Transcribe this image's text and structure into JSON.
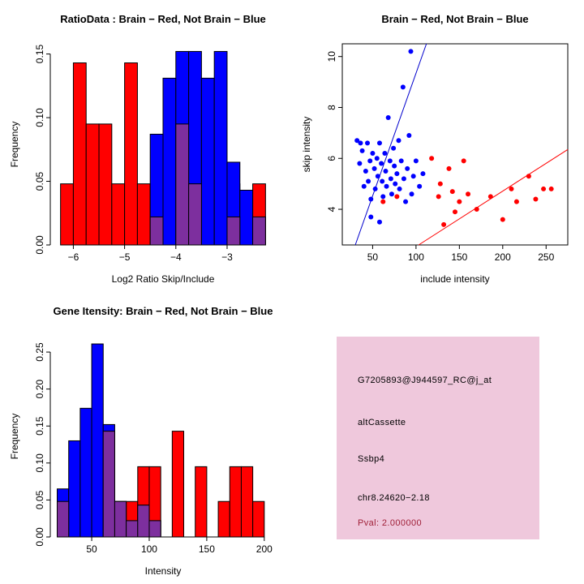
{
  "figure": {
    "background": "#FFFFFF",
    "colors": {
      "brain": "#FF0000",
      "not_brain": "#0000FF",
      "overlap": "#7D2F9E",
      "axis": "#000000"
    }
  },
  "chart_data": [
    {
      "id": "ratio_hist",
      "type": "bar",
      "subtype": "overlaid-histogram",
      "title": "RatioData : Brain − Red, Not Brain − Blue",
      "xlabel": "Log2 Ratio Skip/Include",
      "ylabel": "Frequency",
      "xlim": [
        -6.45,
        -2.05
      ],
      "ylim": [
        0,
        0.158
      ],
      "xticks": [
        -6,
        -5,
        -4,
        -3
      ],
      "xtick_labels": [
        "−6",
        "−5",
        "−4",
        "−3"
      ],
      "yticks": [
        0,
        0.05,
        0.1,
        0.15
      ],
      "ytick_labels": [
        "0.00",
        "0.05",
        "0.10",
        "0.15"
      ],
      "bin_start": -6.25,
      "bin_width": 0.25,
      "legend": [
        {
          "label": "Brain",
          "color": "#FF0000"
        },
        {
          "label": "Not Brain",
          "color": "#0000FF"
        }
      ],
      "series": [
        {
          "name": "brain-red",
          "color": "#FF0000",
          "values": [
            0.048,
            0.143,
            0.095,
            0.095,
            0.048,
            0.143,
            0.048,
            0.048,
            0.048,
            0.095,
            0.048,
            0,
            0,
            0.048,
            0,
            0.048
          ]
        },
        {
          "name": "not-brain-blue",
          "color": "#0000FF",
          "values": [
            0,
            0,
            0,
            0,
            0,
            0,
            0,
            0.087,
            0.131,
            0.152,
            0.152,
            0.131,
            0.152,
            0.065,
            0.043,
            0.022
          ]
        },
        {
          "name": "overlap-purple",
          "color": "#7D2F9E",
          "values": [
            0,
            0,
            0,
            0,
            0,
            0,
            0,
            0.022,
            0,
            0.095,
            0.048,
            0,
            0,
            0.022,
            0,
            0.022
          ]
        }
      ]
    },
    {
      "id": "intensity_scatter",
      "type": "scatter",
      "title": "Brain − Red, Not Brain − Blue",
      "xlabel": "include intensity",
      "ylabel": "skip intensity",
      "xlim": [
        15,
        275
      ],
      "ylim": [
        2.6,
        10.5
      ],
      "xticks": [
        50,
        100,
        150,
        200,
        250
      ],
      "xtick_labels": [
        "50",
        "100",
        "150",
        "200",
        "250"
      ],
      "yticks": [
        4,
        6,
        8,
        10
      ],
      "ytick_labels": [
        "4",
        "6",
        "8",
        "10"
      ],
      "series": [
        {
          "name": "not-brain-blue",
          "color": "#0000FF",
          "points": [
            [
              32,
              6.7
            ],
            [
              35,
              5.8
            ],
            [
              36,
              6.6
            ],
            [
              38,
              6.3
            ],
            [
              40,
              4.9
            ],
            [
              42,
              5.5
            ],
            [
              44,
              6.6
            ],
            [
              45,
              5.1
            ],
            [
              47,
              5.9
            ],
            [
              48,
              4.4
            ],
            [
              48,
              3.7
            ],
            [
              50,
              6.2
            ],
            [
              52,
              5.6
            ],
            [
              53,
              4.8
            ],
            [
              55,
              6.0
            ],
            [
              56,
              5.3
            ],
            [
              58,
              6.6
            ],
            [
              58,
              3.5
            ],
            [
              60,
              5.8
            ],
            [
              61,
              5.1
            ],
            [
              62,
              4.5
            ],
            [
              64,
              6.2
            ],
            [
              65,
              5.5
            ],
            [
              66,
              4.9
            ],
            [
              68,
              7.6
            ],
            [
              70,
              5.9
            ],
            [
              71,
              5.2
            ],
            [
              72,
              4.6
            ],
            [
              74,
              6.4
            ],
            [
              75,
              5.7
            ],
            [
              76,
              5.0
            ],
            [
              78,
              5.4
            ],
            [
              80,
              6.7
            ],
            [
              81,
              4.8
            ],
            [
              83,
              5.9
            ],
            [
              85,
              8.8
            ],
            [
              86,
              5.2
            ],
            [
              88,
              4.3
            ],
            [
              90,
              5.6
            ],
            [
              92,
              6.9
            ],
            [
              94,
              10.2
            ],
            [
              95,
              4.6
            ],
            [
              97,
              5.3
            ],
            [
              100,
              5.9
            ],
            [
              104,
              4.9
            ],
            [
              108,
              5.4
            ]
          ]
        },
        {
          "name": "brain-red",
          "color": "#FF0000",
          "points": [
            [
              62,
              4.3
            ],
            [
              78,
              4.5
            ],
            [
              118,
              6.0
            ],
            [
              126,
              4.5
            ],
            [
              128,
              5.0
            ],
            [
              132,
              3.4
            ],
            [
              138,
              5.6
            ],
            [
              142,
              4.7
            ],
            [
              145,
              3.9
            ],
            [
              150,
              4.3
            ],
            [
              155,
              5.9
            ],
            [
              160,
              4.6
            ],
            [
              170,
              4.0
            ],
            [
              186,
              4.5
            ],
            [
              200,
              3.6
            ],
            [
              210,
              4.8
            ],
            [
              216,
              4.3
            ],
            [
              230,
              5.3
            ],
            [
              238,
              4.4
            ],
            [
              247,
              4.8
            ],
            [
              256,
              4.8
            ]
          ]
        }
      ],
      "lines": [
        {
          "name": "blue-fit-line",
          "color": "#0000CD",
          "x1": 30,
          "y1": 2.6,
          "x2": 112,
          "y2": 10.5
        },
        {
          "name": "red-fit-line",
          "color": "#FF0000",
          "x1": 103,
          "y1": 2.6,
          "x2": 275,
          "y2": 6.35
        }
      ]
    },
    {
      "id": "gene_hist",
      "type": "bar",
      "subtype": "overlaid-histogram",
      "title": "Gene Itensity: Brain − Red, Not Brain − Blue",
      "xlabel": "Intensity",
      "ylabel": "Frequency",
      "xlim": [
        14,
        210
      ],
      "ylim": [
        0,
        0.272
      ],
      "xticks": [
        50,
        100,
        150,
        200
      ],
      "xtick_labels": [
        "50",
        "100",
        "150",
        "200"
      ],
      "yticks": [
        0,
        0.05,
        0.1,
        0.15,
        0.2,
        0.25
      ],
      "ytick_labels": [
        "0.00",
        "0.05",
        "0.10",
        "0.15",
        "0.20",
        "0.25"
      ],
      "bin_start": 20,
      "bin_width": 10,
      "series": [
        {
          "name": "brain-red",
          "color": "#FF0000",
          "values": [
            0.048,
            0,
            0,
            0,
            0.143,
            0.048,
            0.048,
            0.095,
            0.095,
            0,
            0.143,
            0,
            0.095,
            0,
            0.048,
            0.095,
            0.095,
            0.048
          ]
        },
        {
          "name": "not-brain-blue",
          "color": "#0000FF",
          "values": [
            0.065,
            0.13,
            0.174,
            0.261,
            0.152,
            0.048,
            0.022,
            0.043,
            0.022,
            0,
            0,
            0,
            0,
            0,
            0,
            0,
            0,
            0
          ]
        },
        {
          "name": "overlap-purple",
          "color": "#7D2F9E",
          "values": [
            0.048,
            0,
            0,
            0,
            0.143,
            0.048,
            0.022,
            0.043,
            0.022,
            0,
            0,
            0,
            0,
            0,
            0,
            0,
            0,
            0
          ]
        }
      ]
    }
  ],
  "info_box": {
    "background": "#EFC8DC",
    "probe_id": "G7205893@J944597_RC@j_at",
    "event_type": "altCassette",
    "gene_symbol": "Ssbp4",
    "locus": "chr8.24620−2.18",
    "pval": "Pval: 2.000000",
    "pval_color": "#A02038",
    "text_color": "#000000"
  }
}
